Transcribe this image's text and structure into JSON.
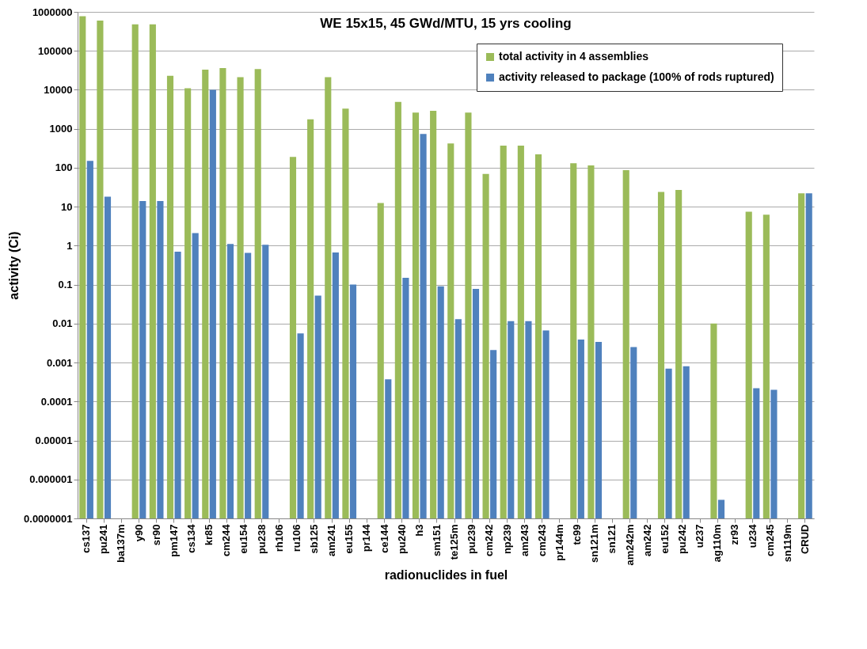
{
  "chart_data": {
    "type": "bar",
    "title": "WE 15x15, 45 GWd/MTU, 15 yrs cooling",
    "xlabel": "radionuclides in fuel",
    "ylabel": "activity  (Ci)",
    "categories": [
      "cs137",
      "pu241",
      "ba137m",
      "y90",
      "sr90",
      "pm147",
      "cs134",
      "kr85",
      "cm244",
      "eu154",
      "pu238",
      "rh106",
      "ru106",
      "sb125",
      "am241",
      "eu155",
      "pr144",
      "ce144",
      "pu240",
      "h3",
      "sm151",
      "te125m",
      "pu239",
      "cm242",
      "np239",
      "am243",
      "cm243",
      "pr144m",
      "tc99",
      "sn121m",
      "sn121",
      "am242m",
      "am242",
      "eu152",
      "pu242",
      "u237",
      "ag110m",
      "zr93",
      "u234",
      "cm245",
      "sn119m",
      "CRUD"
    ],
    "series": [
      {
        "name": "total activity in 4 assemblies",
        "color": "#9bbb59",
        "values": [
          770000,
          600000,
          null,
          480000,
          480000,
          23000,
          11000,
          33000,
          36000,
          21000,
          34000,
          null,
          190,
          1750,
          21000,
          3300,
          null,
          12.5,
          4900,
          2600,
          2900,
          420,
          2600,
          69,
          370,
          370,
          220,
          null,
          130,
          115,
          null,
          87,
          null,
          24,
          27,
          null,
          0.01,
          null,
          7.4,
          6.2,
          null,
          22
        ]
      },
      {
        "name": "activity released to package (100% of rods ruptured)",
        "color": "#4f81bd",
        "values": [
          150,
          18,
          null,
          14,
          14,
          0.7,
          2.1,
          10000,
          1.1,
          0.65,
          1.05,
          null,
          0.0056,
          0.052,
          0.67,
          0.1,
          null,
          0.00037,
          0.15,
          740,
          0.09,
          0.013,
          0.078,
          0.0021,
          0.0116,
          0.0116,
          0.0067,
          null,
          0.0039,
          0.0034,
          null,
          0.0025,
          null,
          0.0007,
          0.0008,
          null,
          3e-07,
          null,
          0.00022,
          0.0002,
          null,
          22
        ]
      }
    ],
    "log": "y",
    "ylim": [
      1e-07,
      1000000
    ],
    "yticks": [
      {
        "value": 1e-07,
        "label": "0.0000001"
      },
      {
        "value": 1e-06,
        "label": "0.000001"
      },
      {
        "value": 1e-05,
        "label": "0.00001"
      },
      {
        "value": 0.0001,
        "label": "0.0001"
      },
      {
        "value": 0.001,
        "label": "0.001"
      },
      {
        "value": 0.01,
        "label": "0.01"
      },
      {
        "value": 0.1,
        "label": "0.1"
      },
      {
        "value": 1,
        "label": "1"
      },
      {
        "value": 10,
        "label": "10"
      },
      {
        "value": 100,
        "label": "100"
      },
      {
        "value": 1000,
        "label": "1000"
      },
      {
        "value": 10000,
        "label": "10000"
      },
      {
        "value": 100000,
        "label": "100000"
      },
      {
        "value": 1000000,
        "label": "1000000"
      }
    ],
    "grid": "y",
    "legend": "top right"
  }
}
